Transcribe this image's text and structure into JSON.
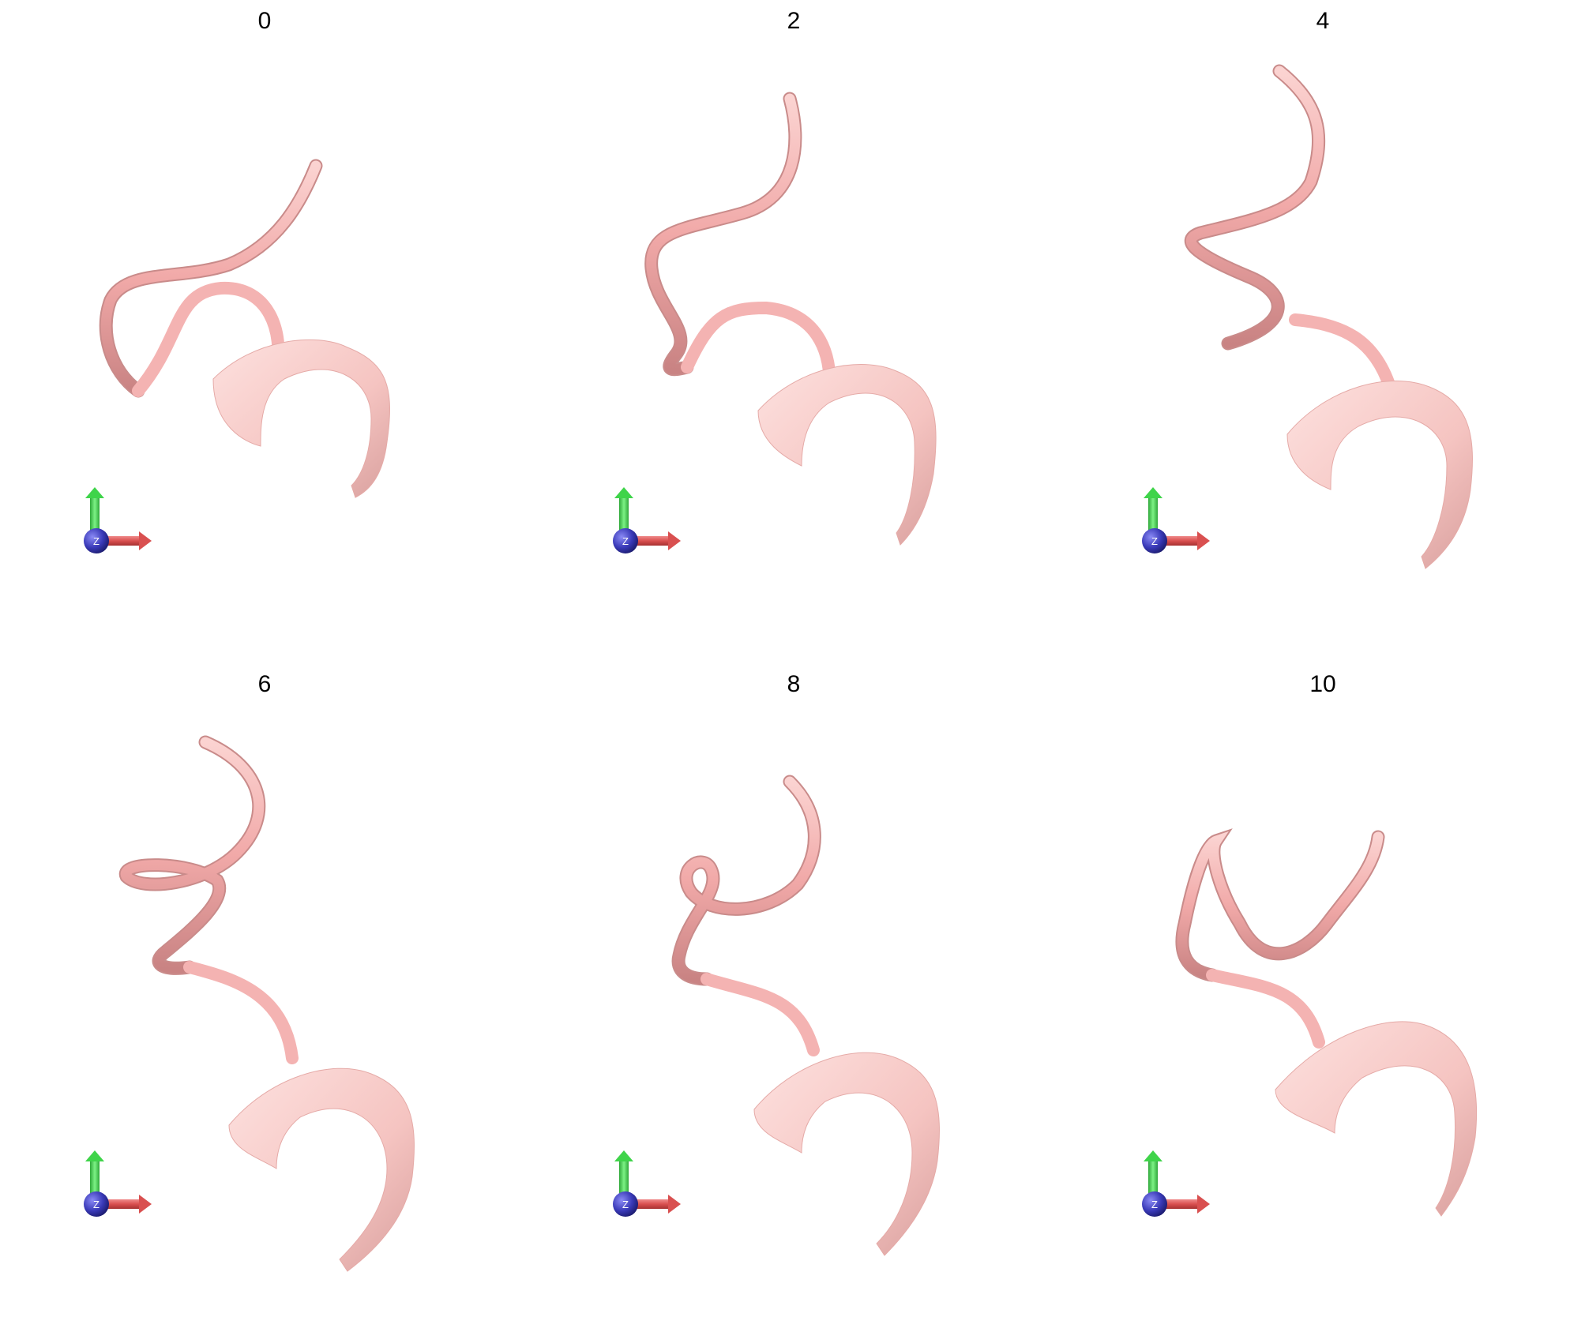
{
  "frames": [
    {
      "label": "0"
    },
    {
      "label": "2"
    },
    {
      "label": "4"
    },
    {
      "label": "6"
    },
    {
      "label": "8"
    },
    {
      "label": "10"
    }
  ],
  "axes_indicator": {
    "z_label": "Z",
    "colors": {
      "x": "#d95050",
      "y": "#3fd44a",
      "z": "#3a3ab8"
    }
  },
  "colors": {
    "tube_light": "#f7c2c0",
    "tube_mid": "#f0a8a8",
    "tube_dark": "#7a4a4a",
    "ribbon": "#f8cfcc"
  }
}
